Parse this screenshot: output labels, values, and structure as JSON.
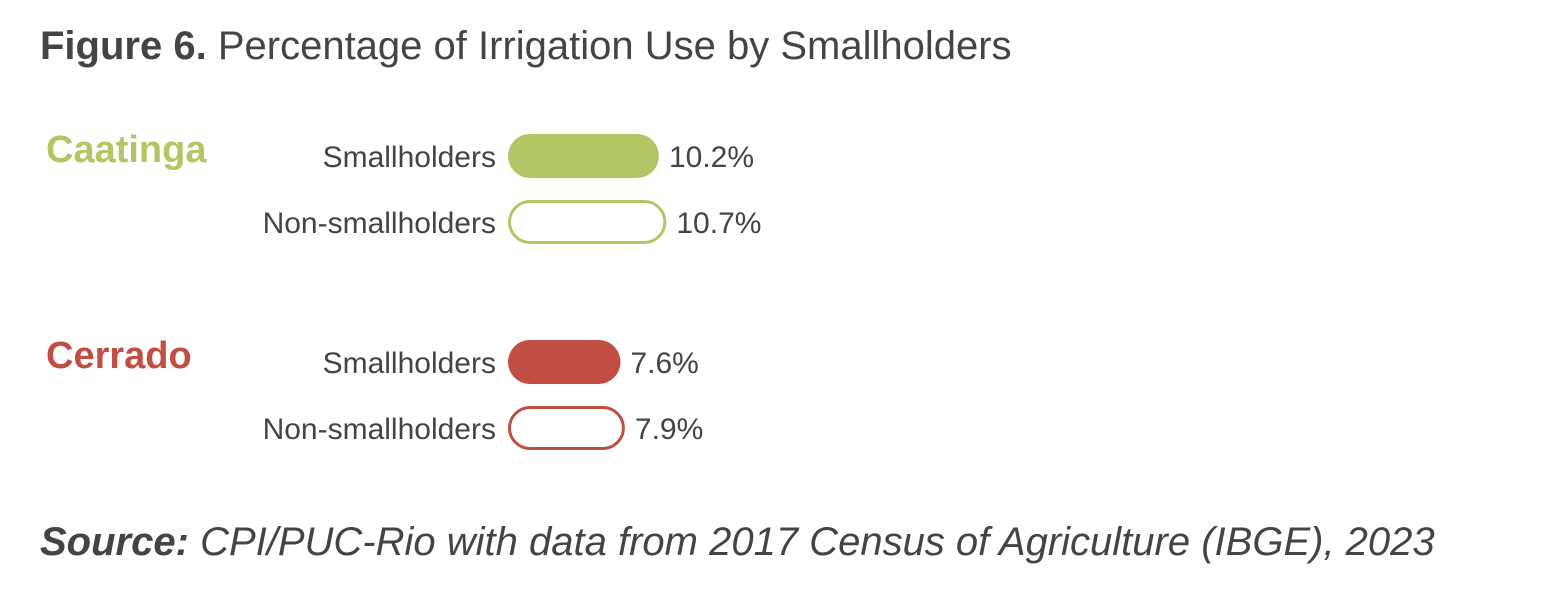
{
  "figure": {
    "prefix": "Figure 6.",
    "title": "Percentage of Irrigation Use by Smallholders"
  },
  "source": {
    "prefix": "Source:",
    "text": "CPI/PUC-Rio with data from 2017 Census of Agriculture (IBGE), 2023"
  },
  "chart_data": {
    "type": "bar",
    "orientation": "horizontal",
    "title": "Percentage of Irrigation Use by Smallholders",
    "xlabel": "",
    "ylabel": "",
    "unit": "%",
    "xlim": [
      0,
      11
    ],
    "grid": false,
    "groups": [
      {
        "name": "Caatinga",
        "color": "#b2c764",
        "bars": [
          {
            "label": "Smallholders",
            "value": 10.2,
            "value_label": "10.2%",
            "style": "filled"
          },
          {
            "label": "Non-smallholders",
            "value": 10.7,
            "value_label": "10.7%",
            "style": "outline"
          }
        ]
      },
      {
        "name": "Cerrado",
        "color": "#c04e42",
        "bars": [
          {
            "label": "Smallholders",
            "value": 7.6,
            "value_label": "7.6%",
            "style": "filled"
          },
          {
            "label": "Non-smallholders",
            "value": 7.9,
            "value_label": "7.9%",
            "style": "outline"
          }
        ]
      }
    ]
  }
}
